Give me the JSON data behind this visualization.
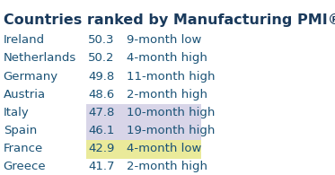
{
  "title": "Countries ranked by Manufacturing PMI® (Jan.)",
  "rows": [
    {
      "country": "Ireland",
      "value": "50.3",
      "note": "9-month low",
      "bg": null
    },
    {
      "country": "Netherlands",
      "value": "50.2",
      "note": "4-month high",
      "bg": null
    },
    {
      "country": "Germany",
      "value": "49.8",
      "note": "11-month high",
      "bg": null
    },
    {
      "country": "Austria",
      "value": "48.6",
      "note": "2-month high",
      "bg": null
    },
    {
      "country": "Italy",
      "value": "47.8",
      "note": "10-month high",
      "bg": "#d8d5e8"
    },
    {
      "country": "Spain",
      "value": "46.1",
      "note": "19-month high",
      "bg": "#d8d5e8"
    },
    {
      "country": "France",
      "value": "42.9",
      "note": "4-month low",
      "bg": "#eaea9a"
    },
    {
      "country": "Greece",
      "value": "41.7",
      "note": "2-month high",
      "bg": null
    }
  ],
  "text_color": "#1a5276",
  "title_color": "#1a3a5c",
  "bg_color": "#ffffff",
  "font_size": 9.5,
  "title_font_size": 11.5
}
